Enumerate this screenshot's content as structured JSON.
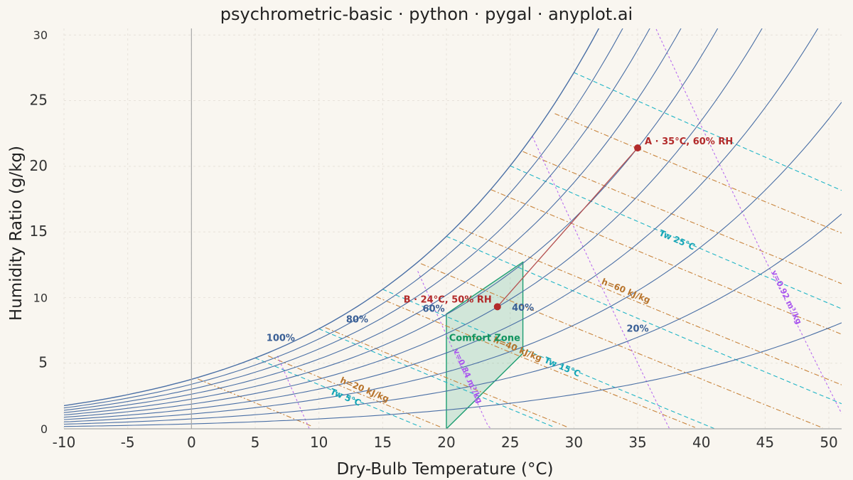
{
  "chart_data": {
    "type": "line",
    "title": "psychrometric-basic · python · pygal · anyplot.ai",
    "xlabel": "Dry-Bulb Temperature (°C)",
    "ylabel": "Humidity Ratio (g/kg)",
    "xlim": [
      -10,
      51
    ],
    "ylim": [
      0,
      30.5
    ],
    "x_ticks": [
      -10,
      -5,
      0,
      5,
      10,
      15,
      20,
      25,
      30,
      35,
      40,
      45,
      50
    ],
    "x_tick_labels": [
      "-10",
      "-5",
      "0",
      "5",
      "10",
      "15",
      "20",
      "25",
      "30",
      "35",
      "40",
      "45",
      "50"
    ],
    "y_ticks": [
      0,
      5,
      10,
      15,
      20,
      25,
      30
    ],
    "y_tick_labels": [
      "0",
      "5",
      "10",
      "15",
      "20",
      "25",
      "30"
    ],
    "grid": true,
    "pressure_kpa": 101.325,
    "relative_humidity_curves": [
      10,
      20,
      30,
      40,
      50,
      60,
      70,
      80,
      90,
      100
    ],
    "rh_labels": [
      {
        "text": "100%",
        "x": 7.0,
        "y": 6.7
      },
      {
        "text": "80%",
        "x": 13.0,
        "y": 8.1
      },
      {
        "text": "60%",
        "x": 19.0,
        "y": 8.9
      },
      {
        "text": "40%",
        "x": 26.0,
        "y": 9.0
      },
      {
        "text": "20%",
        "x": 35.0,
        "y": 7.4
      }
    ],
    "enthalpy_lines": [
      {
        "h": 10,
        "label": ""
      },
      {
        "h": 20,
        "label": "h=20 kJ/kg",
        "label_x": 13.5
      },
      {
        "h": 30,
        "label": ""
      },
      {
        "h": 40,
        "label": "h=40 kJ/kg",
        "label_x": 25.5
      },
      {
        "h": 50,
        "label": ""
      },
      {
        "h": 60,
        "label": "h=60 kJ/kg",
        "label_x": 34.0
      },
      {
        "h": 70,
        "label": ""
      },
      {
        "h": 80,
        "label": ""
      },
      {
        "h": 90,
        "label": ""
      }
    ],
    "wet_bulb_lines": [
      {
        "tw": 5,
        "label": "Tw 5°C",
        "label_x": 12.0
      },
      {
        "tw": 10,
        "label": ""
      },
      {
        "tw": 15,
        "label": "Tw 15°C",
        "label_x": 29.0
      },
      {
        "tw": 20,
        "label": ""
      },
      {
        "tw": 25,
        "label": "Tw 25°C",
        "label_x": 38.0
      },
      {
        "tw": 30,
        "label": ""
      }
    ],
    "specific_volume_lines": [
      {
        "v": 0.8,
        "label": ""
      },
      {
        "v": 0.84,
        "label": "v=0.84 m³/kg",
        "label_x": 21.5
      },
      {
        "v": 0.88,
        "label": ""
      },
      {
        "v": 0.92,
        "label": "v=0.92 m³/kg",
        "label_x": 46.5
      }
    ],
    "comfort_zone": {
      "label": "Comfort Zone",
      "polygon": [
        [
          20,
          0
        ],
        [
          26,
          5.75
        ],
        [
          26,
          12.7
        ],
        [
          20,
          8.75
        ]
      ]
    },
    "process_line": {
      "from": "B",
      "to": "A"
    },
    "points": [
      {
        "name": "A",
        "label": "A · 35°C, 60% RH",
        "x": 35,
        "y": 21.4
      },
      {
        "name": "B",
        "label": "B · 24°C, 50% RH",
        "x": 24,
        "y": 9.3
      }
    ],
    "colors": {
      "background": "#F9F6F0",
      "rh_curve": "#4A6FA5",
      "rh_label": "#3A5F95",
      "enthalpy": "#C8843C",
      "enthalpy_label": "#B8742C",
      "wet_bulb": "#1FB5C6",
      "wet_bulb_label": "#15A5B6",
      "specific_volume": "#B86BF0",
      "specific_volume_label": "#A855EE",
      "comfort_fill": "#1E9E72",
      "comfort_label": "#11945F",
      "point": "#B22A2A",
      "process": "#B55050",
      "axis": "#A9A9A9",
      "grid": "#E7E2DA"
    }
  }
}
